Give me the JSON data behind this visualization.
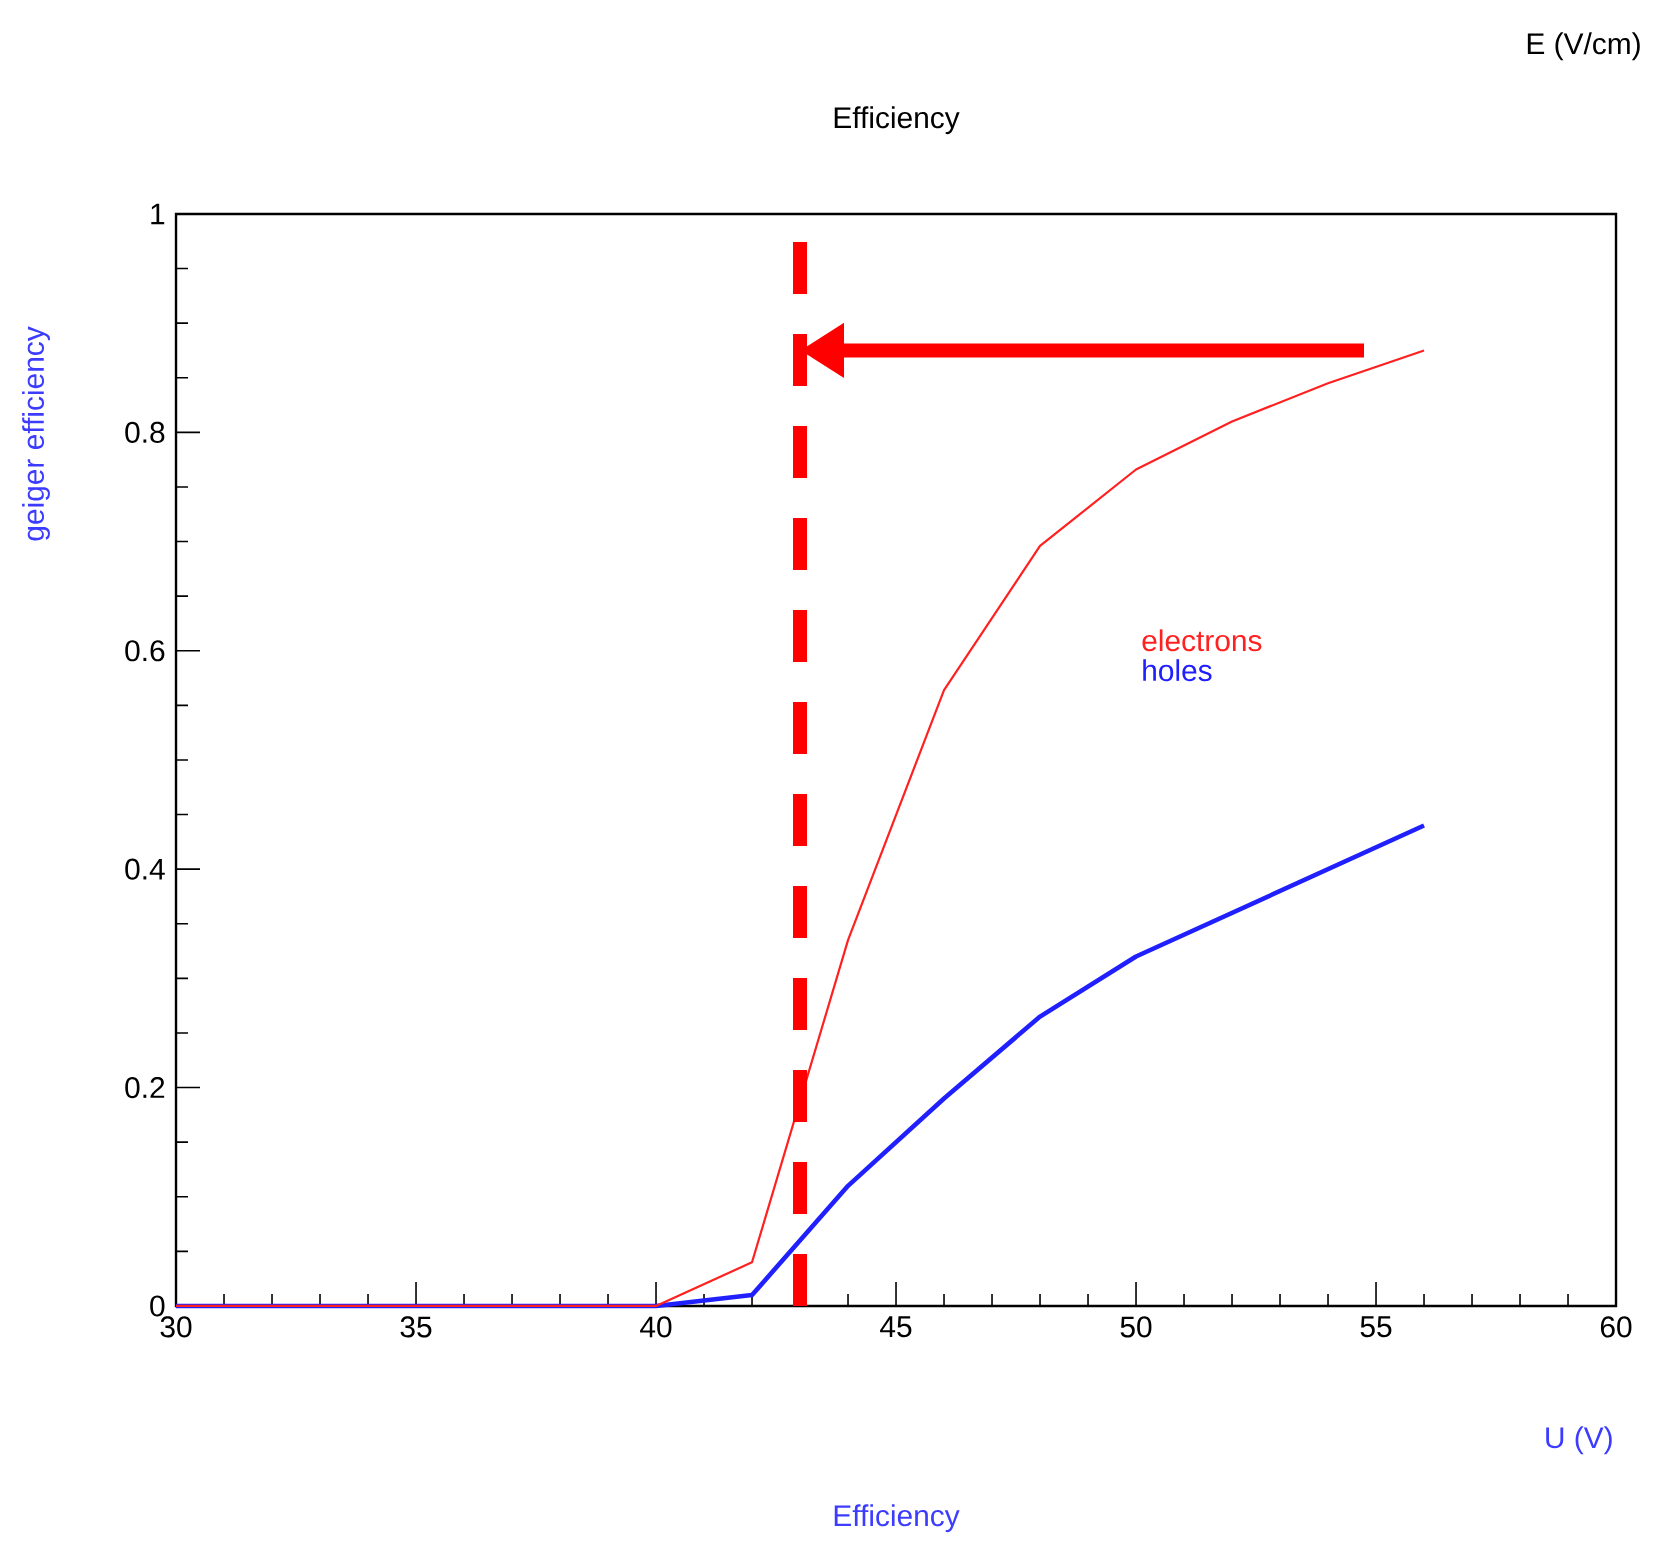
{
  "chart_data": {
    "type": "line",
    "title": "Efficiency",
    "subtitle": "E (V/cm)",
    "xlabel": "U (V)",
    "ylabel": "geiger efficiency",
    "annotations": [
      "Efficiency"
    ],
    "x": [
      30,
      32,
      34,
      36,
      38,
      40,
      42,
      44,
      46,
      48,
      50,
      52,
      54,
      56
    ],
    "series": [
      {
        "name": "electrons",
        "color": "#ff2020",
        "values": [
          0,
          0,
          0,
          0,
          0,
          0,
          0.04,
          0.335,
          0.564,
          0.696,
          0.766,
          0.81,
          0.845,
          0.875
        ]
      },
      {
        "name": "holes",
        "color": "#2020ff",
        "values": [
          0,
          0,
          0,
          0,
          0,
          0,
          0.01,
          0.11,
          0.19,
          0.265,
          0.32,
          0.36,
          0.4,
          0.44
        ]
      }
    ],
    "ref_lines": [
      {
        "axis": "x",
        "value": 43,
        "color": "#ff0000",
        "line_style": "dashed"
      }
    ],
    "xlim": [
      30,
      60
    ],
    "ylim": [
      0,
      1
    ],
    "xticks": [
      30,
      35,
      40,
      45,
      50,
      55,
      60
    ],
    "yticks": [
      0,
      0.2,
      0.4,
      0.6,
      0.8,
      1
    ],
    "grid": false,
    "marker": "none",
    "line_style": "solid",
    "legend": "right"
  }
}
